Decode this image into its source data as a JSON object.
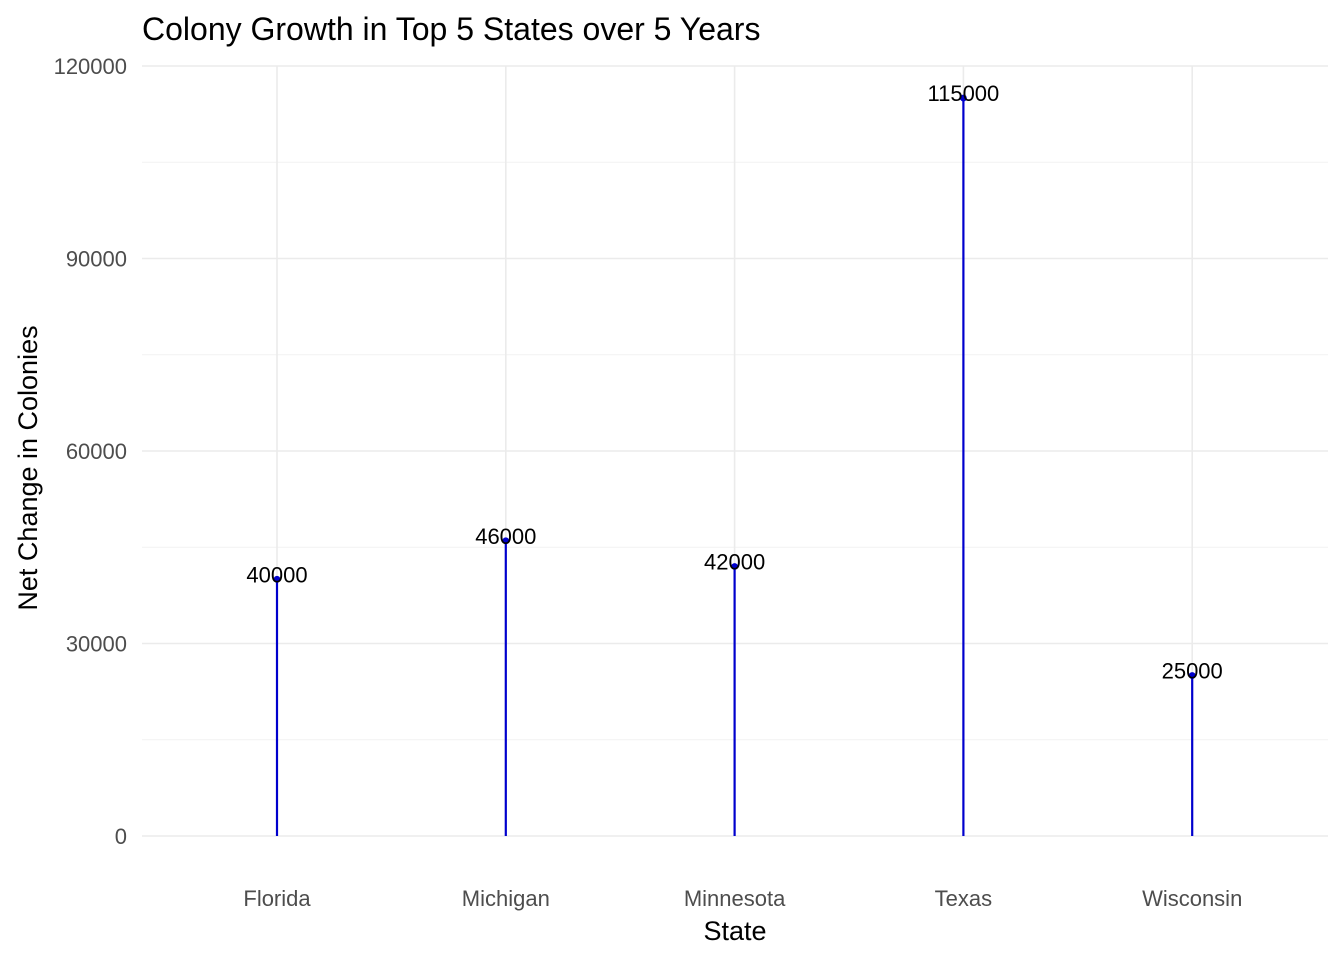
{
  "chart_data": {
    "type": "lollipop",
    "title": "Colony Growth in Top 5 States over 5 Years",
    "xlabel": "State",
    "ylabel": "Net Change in Colonies",
    "categories": [
      "Florida",
      "Michigan",
      "Minnesota",
      "Texas",
      "Wisconsin"
    ],
    "values": [
      40000,
      46000,
      42000,
      115000,
      25000
    ],
    "value_labels": [
      "40000",
      "46000",
      "42000",
      "115000",
      "25000"
    ],
    "ylim": [
      0,
      120000
    ],
    "yticks": [
      0,
      30000,
      60000,
      90000,
      120000
    ],
    "ytick_labels": [
      "0",
      "30000",
      "60000",
      "90000",
      "120000"
    ],
    "grid": true,
    "colors": {
      "stem": "#0000cd",
      "point": "#0000cd"
    }
  }
}
